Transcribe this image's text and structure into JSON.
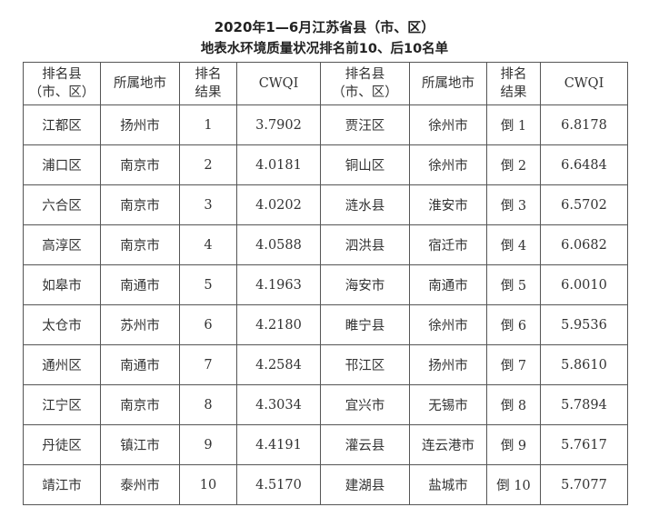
{
  "title": {
    "line1": "2020年1—6月江苏省县（市、区）",
    "line2": "地表水环境质量状况排名前10、后10名单"
  },
  "headers": {
    "county_l1": "排名县",
    "county_l2": "（市、区）",
    "city": "所属地市",
    "rank_l1": "排名",
    "rank_l2": "结果",
    "cwqi": "CWQI"
  },
  "rows": [
    {
      "top_county": "江都区",
      "top_city": "扬州市",
      "top_rank": "1",
      "top_cwqi": "3.7902",
      "bottom_county": "贾汪区",
      "bottom_city": "徐州市",
      "bottom_rank": "倒 1",
      "bottom_cwqi": "6.8178"
    },
    {
      "top_county": "浦口区",
      "top_city": "南京市",
      "top_rank": "2",
      "top_cwqi": "4.0181",
      "bottom_county": "铜山区",
      "bottom_city": "徐州市",
      "bottom_rank": "倒 2",
      "bottom_cwqi": "6.6484"
    },
    {
      "top_county": "六合区",
      "top_city": "南京市",
      "top_rank": "3",
      "top_cwqi": "4.0202",
      "bottom_county": "涟水县",
      "bottom_city": "淮安市",
      "bottom_rank": "倒 3",
      "bottom_cwqi": "6.5702"
    },
    {
      "top_county": "高淳区",
      "top_city": "南京市",
      "top_rank": "4",
      "top_cwqi": "4.0588",
      "bottom_county": "泗洪县",
      "bottom_city": "宿迁市",
      "bottom_rank": "倒 4",
      "bottom_cwqi": "6.0682"
    },
    {
      "top_county": "如皋市",
      "top_city": "南通市",
      "top_rank": "5",
      "top_cwqi": "4.1963",
      "bottom_county": "海安市",
      "bottom_city": "南通市",
      "bottom_rank": "倒 5",
      "bottom_cwqi": "6.0010"
    },
    {
      "top_county": "太仓市",
      "top_city": "苏州市",
      "top_rank": "6",
      "top_cwqi": "4.2180",
      "bottom_county": "睢宁县",
      "bottom_city": "徐州市",
      "bottom_rank": "倒 6",
      "bottom_cwqi": "5.9536"
    },
    {
      "top_county": "通州区",
      "top_city": "南通市",
      "top_rank": "7",
      "top_cwqi": "4.2584",
      "bottom_county": "邗江区",
      "bottom_city": "扬州市",
      "bottom_rank": "倒 7",
      "bottom_cwqi": "5.8610"
    },
    {
      "top_county": "江宁区",
      "top_city": "南京市",
      "top_rank": "8",
      "top_cwqi": "4.3034",
      "bottom_county": "宜兴市",
      "bottom_city": "无锡市",
      "bottom_rank": "倒 8",
      "bottom_cwqi": "5.7894"
    },
    {
      "top_county": "丹徒区",
      "top_city": "镇江市",
      "top_rank": "9",
      "top_cwqi": "4.4191",
      "bottom_county": "灌云县",
      "bottom_city": "连云港市",
      "bottom_rank": "倒 9",
      "bottom_cwqi": "5.7617"
    },
    {
      "top_county": "靖江市",
      "top_city": "泰州市",
      "top_rank": "10",
      "top_cwqi": "4.5170",
      "bottom_county": "建湖县",
      "bottom_city": "盐城市",
      "bottom_rank": "倒 10",
      "bottom_cwqi": "5.7077"
    }
  ]
}
